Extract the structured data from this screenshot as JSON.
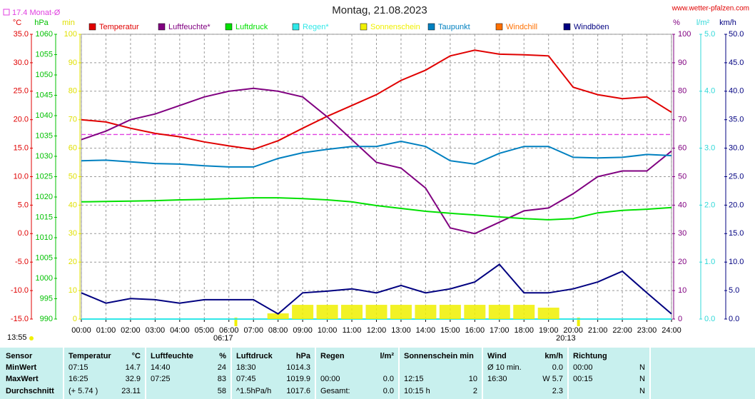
{
  "chart_data": {
    "type": "line",
    "title": "Montag, 21.08.2023",
    "source": "www.wetter-pfalzen.com",
    "reference": {
      "label": "17.4 Monat-Ø",
      "value": 17.4,
      "color": "#e040e0"
    },
    "now": "13:55",
    "sunrise": {
      "label": "06:17",
      "x": 6.283
    },
    "sunset": {
      "label": "20:13",
      "x": 20.217
    },
    "grid": true,
    "x": [
      "00:00",
      "01:00",
      "02:00",
      "03:00",
      "04:00",
      "05:00",
      "06:00",
      "07:00",
      "08:00",
      "09:00",
      "10:00",
      "11:00",
      "12:00",
      "13:00",
      "14:00",
      "15:00",
      "16:00",
      "17:00",
      "18:00",
      "19:00",
      "20:00",
      "21:00",
      "22:00",
      "23:00",
      "24:00"
    ],
    "axes": {
      "y": {
        "label": "°C",
        "color": "#e00000",
        "lim": [
          -15,
          35
        ],
        "ticks": [
          {
            "value": -15,
            "label": "-15.0"
          },
          {
            "value": -10,
            "label": "-10.0"
          },
          {
            "value": -5,
            "label": "-5.0"
          },
          {
            "value": 0,
            "label": "0.0"
          },
          {
            "value": 5,
            "label": "5.0"
          },
          {
            "value": 10,
            "label": "10.0"
          },
          {
            "value": 15,
            "label": "15.0"
          },
          {
            "value": 20,
            "label": "20.0"
          },
          {
            "value": 25,
            "label": "25.0"
          },
          {
            "value": 30,
            "label": "30.0"
          },
          {
            "value": 35,
            "label": "35.0"
          }
        ]
      },
      "y2": {
        "label": "hPa",
        "color": "#00c000",
        "lim": [
          990,
          1060
        ],
        "ticks": [
          990,
          995,
          1000,
          1005,
          1010,
          1015,
          1020,
          1025,
          1030,
          1035,
          1040,
          1045,
          1050,
          1055,
          1060
        ]
      },
      "y3": {
        "label": "min",
        "color": "#e0e000",
        "lim": [
          0,
          100
        ],
        "ticks": [
          0,
          10,
          20,
          30,
          40,
          50,
          60,
          70,
          80,
          90,
          100
        ]
      },
      "y4": {
        "label": "%",
        "color": "#800080",
        "lim": [
          0,
          100
        ],
        "ticks": [
          0,
          10,
          20,
          30,
          40,
          50,
          60,
          70,
          80,
          90,
          100
        ]
      },
      "y5": {
        "label": "l/m²",
        "color": "#30d8d8",
        "lim": [
          0,
          5
        ],
        "ticks": [
          {
            "value": 0,
            "label": "0.0"
          },
          {
            "value": 1,
            "label": "1.0"
          },
          {
            "value": 2,
            "label": "2.0"
          },
          {
            "value": 3,
            "label": "3.0"
          },
          {
            "value": 4,
            "label": "4.0"
          },
          {
            "value": 5,
            "label": "5.0"
          }
        ]
      },
      "y6": {
        "label": "km/h",
        "color": "#000080",
        "lim": [
          0,
          50
        ],
        "ticks": [
          {
            "value": 0,
            "label": "0.0"
          },
          {
            "value": 5,
            "label": "5.0"
          },
          {
            "value": 10,
            "label": "10.0"
          },
          {
            "value": 15,
            "label": "15.0"
          },
          {
            "value": 20,
            "label": "20.0"
          },
          {
            "value": 25,
            "label": "25.0"
          },
          {
            "value": 30,
            "label": "30.0"
          },
          {
            "value": 35,
            "label": "35.0"
          },
          {
            "value": 40,
            "label": "40.0"
          },
          {
            "value": 45,
            "label": "45.0"
          },
          {
            "value": 50,
            "label": "50.0"
          }
        ]
      }
    },
    "series": [
      {
        "name": "Temperatur",
        "color": "#e00000",
        "axis": "y",
        "values": [
          20.0,
          19.6,
          18.5,
          17.6,
          17.0,
          16.1,
          15.4,
          14.8,
          16.3,
          18.5,
          20.6,
          22.5,
          24.4,
          26.9,
          28.7,
          31.2,
          32.2,
          31.5,
          31.4,
          31.2,
          25.7,
          24.4,
          23.7,
          24.0,
          21.3
        ]
      },
      {
        "name": "Luftfeuchte*",
        "color": "#800080",
        "axis": "y4",
        "values": [
          63,
          66,
          70,
          72,
          75,
          78,
          80,
          81,
          80,
          78,
          71,
          63,
          55,
          53,
          46,
          32,
          30,
          34,
          38,
          39,
          44,
          50,
          52,
          52,
          59
        ]
      },
      {
        "name": "Luftdruck",
        "color": "#00e000",
        "axis": "y2",
        "values": [
          1018.8,
          1018.9,
          1019.0,
          1019.1,
          1019.3,
          1019.4,
          1019.6,
          1019.8,
          1019.8,
          1019.6,
          1019.3,
          1018.8,
          1017.9,
          1017.2,
          1016.5,
          1016.0,
          1015.6,
          1015.1,
          1014.7,
          1014.4,
          1014.7,
          1016.1,
          1016.7,
          1017.0,
          1017.4
        ]
      },
      {
        "name": "Regen*",
        "color": "#30e8e8",
        "axis": "y5",
        "values": [
          0,
          0,
          0,
          0,
          0,
          0,
          0,
          0,
          0,
          0,
          0,
          0,
          0,
          0,
          0,
          0,
          0,
          0,
          0,
          0,
          0,
          0,
          0,
          0,
          0
        ]
      },
      {
        "name": "Sonnenschein",
        "color": "#f0f000",
        "axis": "y3",
        "style": "bar",
        "values": [
          0,
          0,
          0,
          0,
          0,
          0,
          0,
          0,
          2,
          5,
          5,
          5,
          5,
          5,
          5,
          5,
          5,
          5,
          5,
          4,
          0,
          0,
          0,
          0,
          0
        ]
      },
      {
        "name": "Taupunkt",
        "color": "#0080c0",
        "axis": "y",
        "values": [
          12.8,
          12.9,
          12.6,
          12.3,
          12.2,
          11.9,
          11.7,
          11.7,
          13.2,
          14.2,
          14.8,
          15.3,
          15.3,
          16.2,
          15.3,
          12.8,
          12.2,
          14.1,
          15.3,
          15.3,
          13.4,
          13.3,
          13.4,
          13.9,
          13.7
        ]
      },
      {
        "name": "Windchill",
        "color": "#ff7000",
        "axis": "y",
        "values": [
          null,
          null,
          null,
          null,
          null,
          null,
          null,
          null,
          null,
          null,
          null,
          null,
          null,
          null,
          null,
          null,
          null,
          null,
          null,
          null,
          null,
          null,
          null,
          null,
          null
        ]
      },
      {
        "name": "Windböen",
        "color": "#000080",
        "axis": "y6",
        "values": [
          4.6,
          2.8,
          3.6,
          3.4,
          2.8,
          3.4,
          3.4,
          3.4,
          0.9,
          4.6,
          4.9,
          5.3,
          4.6,
          5.9,
          4.6,
          5.3,
          6.5,
          9.6,
          4.6,
          4.6,
          5.3,
          6.5,
          8.4,
          4.6,
          0.9
        ]
      }
    ]
  },
  "table": {
    "columns": [
      {
        "name": "Sensor"
      },
      {
        "name": "Temperatur",
        "unit": "°C"
      },
      {
        "name": "Luftfeuchte",
        "unit": "%"
      },
      {
        "name": "Luftdruck",
        "unit": "hPa"
      },
      {
        "name": "Regen",
        "unit": "l/m²"
      },
      {
        "name": "Sonnenschein min"
      },
      {
        "name": "Wind",
        "unit": "km/h"
      },
      {
        "name": "Richtung"
      }
    ],
    "rows": [
      {
        "label": "MinWert",
        "cells": [
          [
            "07:15",
            "14.7"
          ],
          [
            "14:40",
            "24"
          ],
          [
            "18:30",
            "1014.3"
          ],
          [
            null,
            null
          ],
          [
            null,
            null
          ],
          [
            "Ø 10 min.",
            "0.0"
          ],
          [
            "00:00",
            "N"
          ]
        ]
      },
      {
        "label": "MaxWert",
        "cells": [
          [
            "16:25",
            "32.9"
          ],
          [
            "07:25",
            "83"
          ],
          [
            "07:45",
            "1019.9"
          ],
          [
            "00:00",
            "0.0"
          ],
          [
            "12:15",
            "10"
          ],
          [
            "16:30",
            "W 5.7"
          ],
          [
            "00:15",
            "N"
          ]
        ]
      },
      {
        "label": "Durchschnitt",
        "cells": [
          [
            "(+ 5.74 )",
            "23.11"
          ],
          [
            null,
            "58"
          ],
          [
            "^1.5hPa/h",
            "1017.6"
          ],
          [
            "Gesamt:",
            "0.0"
          ],
          [
            "10:15 h",
            "2"
          ],
          [
            null,
            "2.3"
          ],
          [
            null,
            "N"
          ]
        ]
      }
    ]
  }
}
